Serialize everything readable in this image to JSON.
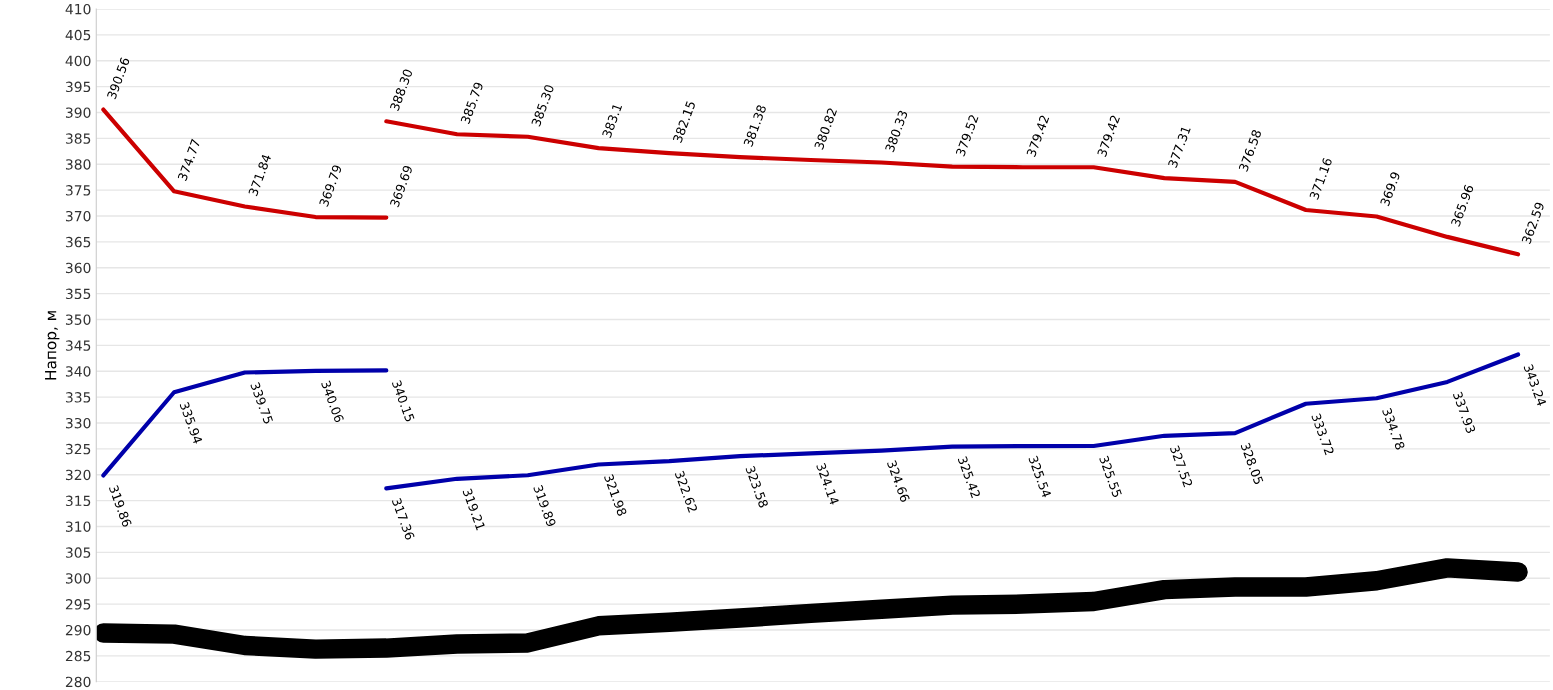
{
  "chart_data": {
    "type": "line",
    "ylabel": "Напор, м",
    "categories": [
      null,
      null,
      null,
      null,
      null,
      null,
      null,
      null,
      null,
      null,
      null,
      null,
      null,
      null,
      null,
      null,
      null,
      null,
      null,
      null,
      null
    ],
    "series": [
      {
        "color": "#cc0000",
        "values": [
          390.56,
          374.77,
          371.84,
          369.79,
          369.69,
          null,
          null,
          null,
          null,
          null,
          null,
          null,
          null,
          null,
          null,
          null,
          null,
          null,
          null,
          null,
          null
        ],
        "value_labels": [
          "390.56",
          "374.77",
          "371.84",
          "369.79",
          "369.69",
          null,
          null,
          null,
          null,
          null,
          null,
          null,
          null,
          null,
          null,
          null,
          null,
          null,
          null,
          null,
          null
        ]
      },
      {
        "color": "#cc0000",
        "values": [
          null,
          null,
          null,
          null,
          388.3,
          385.79,
          385.3,
          383.1,
          382.15,
          381.38,
          380.82,
          380.33,
          379.52,
          379.42,
          379.42,
          377.31,
          376.58,
          371.16,
          369.9,
          365.96,
          362.59
        ],
        "value_labels": [
          null,
          null,
          null,
          null,
          "388.30",
          "385.79",
          "385.30",
          "383.1",
          "382.15",
          "381.38",
          "380.82",
          "380.33",
          "379.52",
          "379.42",
          "379.42",
          "377.31",
          "376.58",
          "371.16",
          "369.9",
          "365.96",
          "362.59"
        ]
      },
      {
        "color": "#0000aa",
        "values": [
          319.86,
          335.94,
          339.75,
          340.06,
          340.15,
          null,
          null,
          null,
          null,
          null,
          null,
          null,
          null,
          null,
          null,
          null,
          null,
          null,
          null,
          null,
          null
        ],
        "value_labels": [
          "319.86",
          "335.94",
          "339.75",
          "340.06",
          "340.15",
          null,
          null,
          null,
          null,
          null,
          null,
          null,
          null,
          null,
          null,
          null,
          null,
          null,
          null,
          null,
          null
        ]
      },
      {
        "color": "#0000aa",
        "values": [
          null,
          null,
          null,
          null,
          317.36,
          319.21,
          319.89,
          321.98,
          322.62,
          323.58,
          324.14,
          324.66,
          325.42,
          325.54,
          325.55,
          327.52,
          328.05,
          333.72,
          334.78,
          337.93,
          343.24
        ],
        "value_labels": [
          null,
          null,
          null,
          null,
          "317.36",
          "319.21",
          "319.89",
          "321.98",
          "322.62",
          "323.58",
          "324.14",
          "324.66",
          "325.42",
          "325.54",
          "325.55",
          "327.52",
          "328.05",
          "333.72",
          "334.78",
          "337.93",
          "343.24"
        ]
      },
      {
        "color": "#000000",
        "values": [
          289.4,
          289.2,
          287,
          286.3,
          286.5,
          287.3,
          287.5,
          290.8,
          291.5,
          292.3,
          293.2,
          294,
          294.8,
          295,
          295.5,
          297.8,
          298.3,
          298.3,
          299.5,
          302,
          301.2
        ]
      }
    ],
    "ylim": [
      280,
      410
    ],
    "yticks": [
      280,
      285,
      290,
      295,
      300,
      305,
      310,
      315,
      320,
      325,
      330,
      335,
      340,
      345,
      350,
      355,
      360,
      365,
      370,
      375,
      380,
      385,
      390,
      395,
      400,
      405,
      410
    ],
    "grid": true,
    "tick_labels": "y",
    "marker": "none",
    "line_style": "solid"
  }
}
